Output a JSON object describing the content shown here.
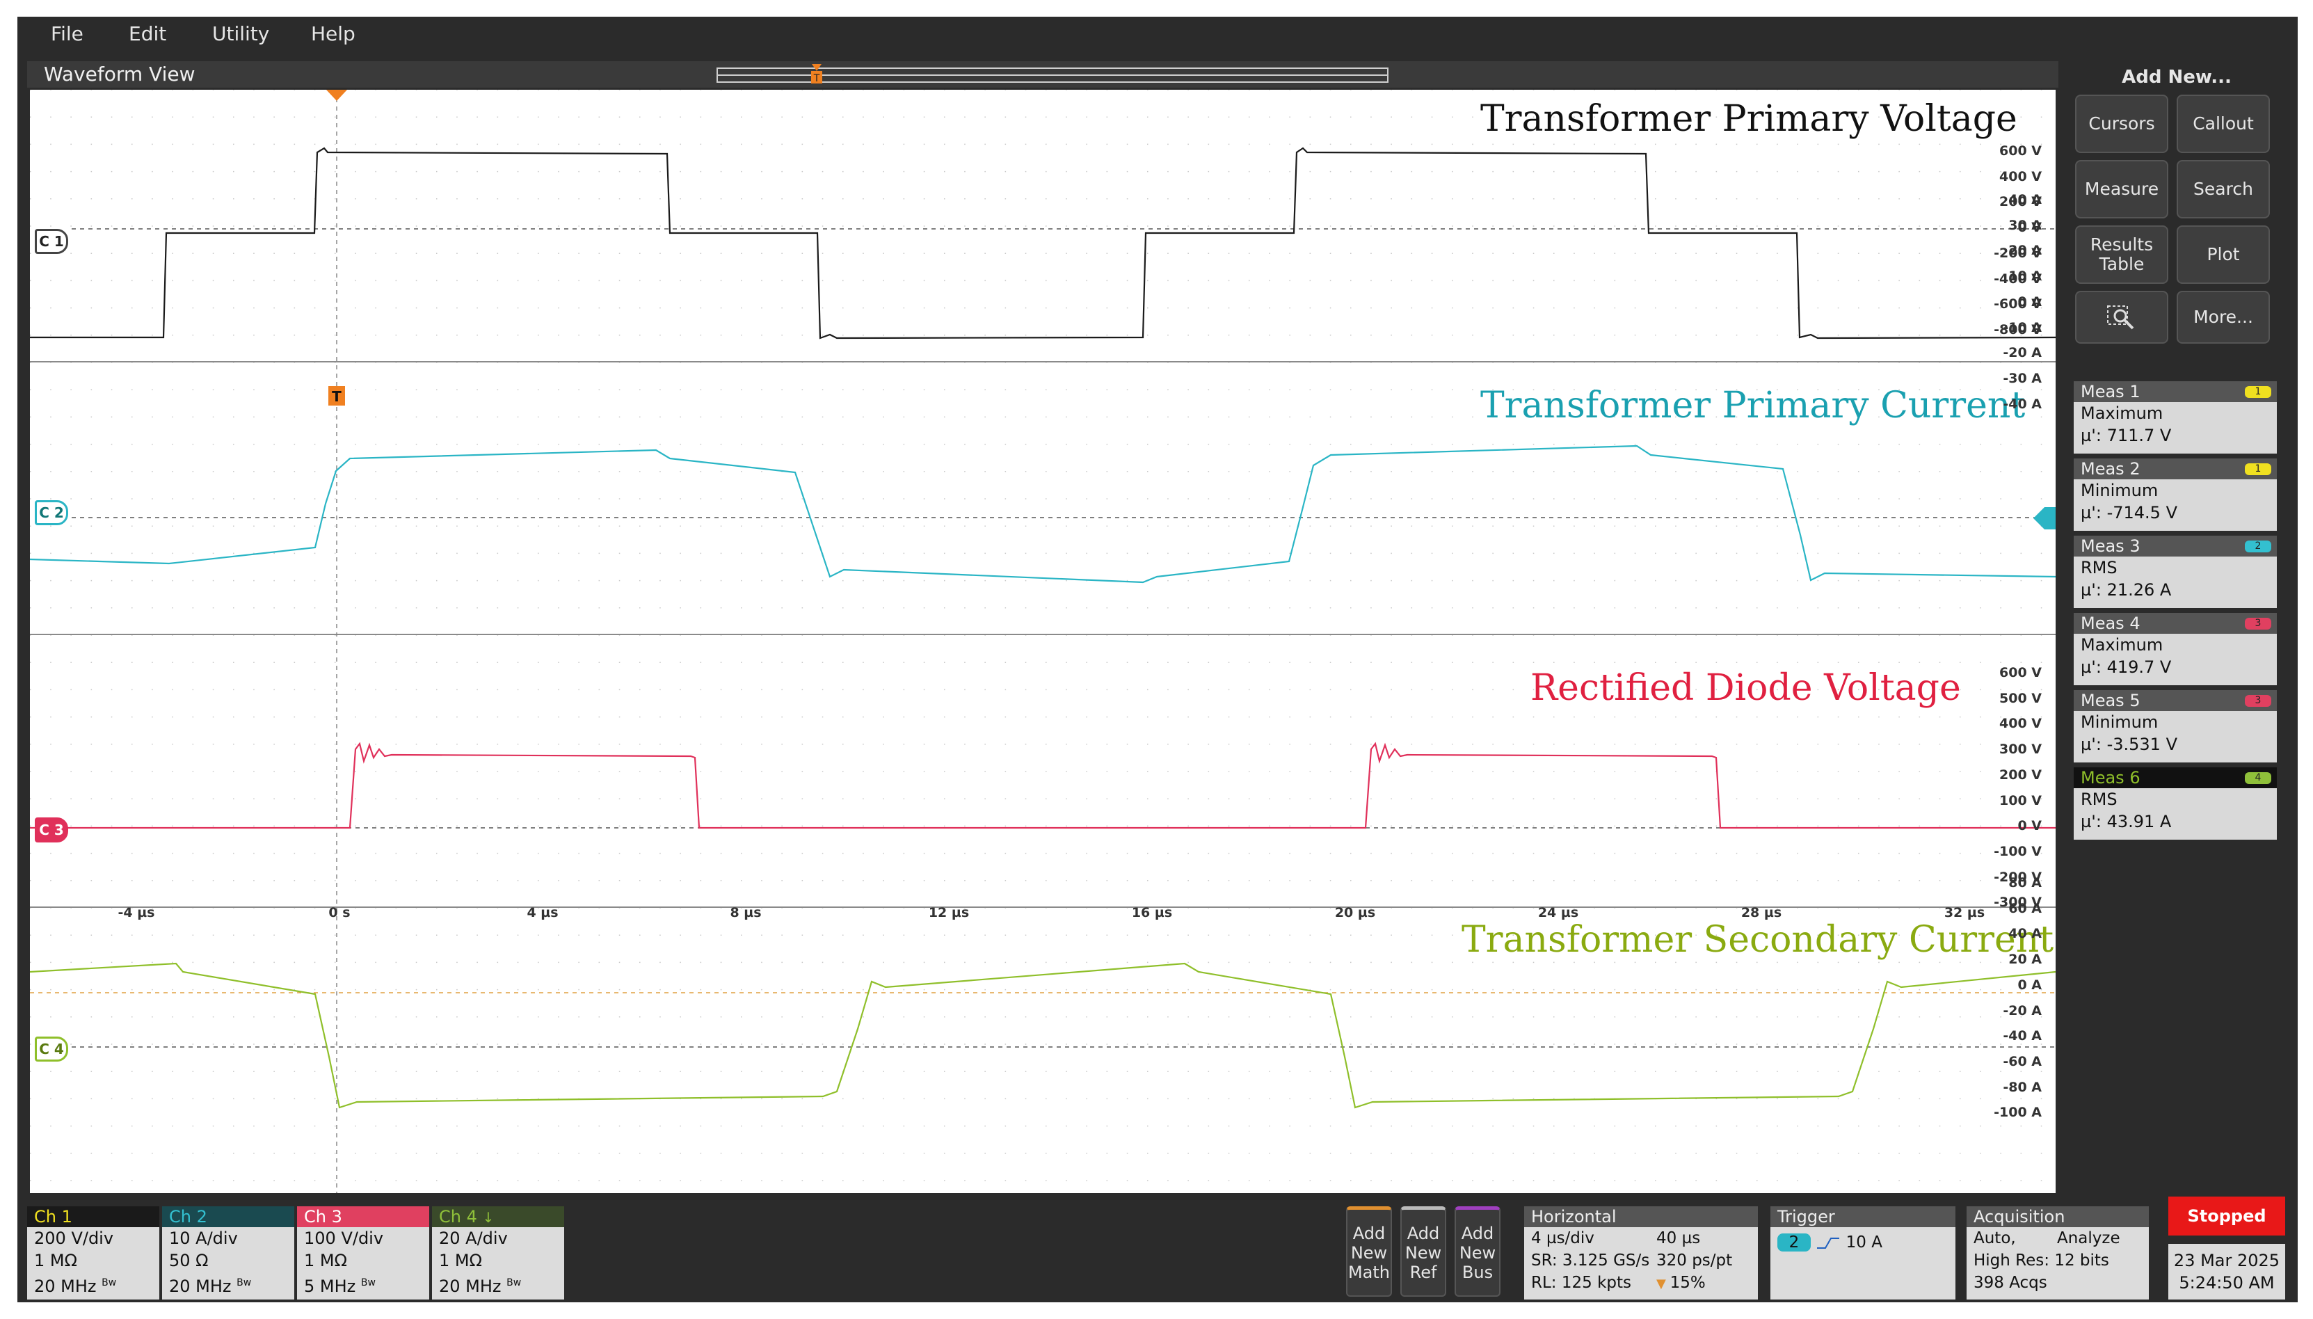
{
  "menu": [
    "File",
    "Edit",
    "Utility",
    "Help"
  ],
  "view_title": "Waveform View",
  "wave_titles": {
    "c1": "Transformer Primary Voltage",
    "c2": "Transformer Primary Current",
    "c3": "Rectified Diode Voltage",
    "c4": "Transformer Secondary Current"
  },
  "channel_labels": [
    "C 1",
    "C 2",
    "C 3",
    "C 4"
  ],
  "axis": {
    "c1": [
      "600 V",
      "400 V",
      "200 V",
      "0 V",
      "-200 V",
      "-400 V",
      "-600 V",
      "-800 V"
    ],
    "c2": [
      "40 A",
      "30 A",
      "20 A",
      "10 A",
      "0 A",
      "-10 A",
      "-20 A",
      "-30 A",
      "-40 A"
    ],
    "c3": [
      "600 V",
      "500 V",
      "400 V",
      "300 V",
      "200 V",
      "100 V",
      "0 V",
      "-100 V",
      "-200 V",
      "-300 V"
    ],
    "c4": [
      "80 A",
      "60 A",
      "40 A",
      "20 A",
      "0 A",
      "-20 A",
      "-40 A",
      "-60 A",
      "-80 A",
      "-100 A"
    ],
    "time": [
      "-4 µs",
      "0 s",
      "4 µs",
      "8 µs",
      "12 µs",
      "16 µs",
      "20 µs",
      "24 µs",
      "28 µs",
      "32 µs"
    ]
  },
  "trigger_marker": "T",
  "right_panel": {
    "add_new": "Add New...",
    "buttons": [
      "Cursors",
      "Callout",
      "Measure",
      "Search",
      "Results Table",
      "Plot",
      "More..."
    ],
    "measurements": [
      {
        "name": "Meas 1",
        "badge": "1",
        "type": "Maximum",
        "value": "µ': 711.7 V",
        "badge_color": "#f0e020"
      },
      {
        "name": "Meas 2",
        "badge": "1",
        "type": "Minimum",
        "value": "µ': -714.5 V",
        "badge_color": "#f0e020"
      },
      {
        "name": "Meas 3",
        "badge": "2",
        "type": "RMS",
        "value": "µ': 21.26 A",
        "badge_color": "#33c0d0"
      },
      {
        "name": "Meas 4",
        "badge": "3",
        "type": "Maximum",
        "value": "µ': 419.7 V",
        "badge_color": "#e04060"
      },
      {
        "name": "Meas 5",
        "badge": "3",
        "type": "Minimum",
        "value": "µ': -3.531 V",
        "badge_color": "#e04060"
      },
      {
        "name": "Meas 6",
        "badge": "4",
        "type": "RMS",
        "value": "µ': 43.91 A",
        "badge_color": "#8fc03a"
      }
    ]
  },
  "channels": [
    {
      "name": "Ch 1",
      "scale": "200 V/div",
      "impedance": "1 MΩ",
      "bandwidth": "20 MHz",
      "bw": "Bw",
      "color": "#1a1a1a",
      "head_text": "#f0e020"
    },
    {
      "name": "Ch 2",
      "scale": "10 A/div",
      "impedance": "50 Ω",
      "bandwidth": "20 MHz",
      "bw": "Bw",
      "color": "#1a4a50",
      "head_text": "#33c0d0"
    },
    {
      "name": "Ch 3",
      "scale": "100 V/div",
      "impedance": "1 MΩ",
      "bandwidth": "5 MHz",
      "bw": "Bw",
      "color": "#e04060",
      "head_text": "#ffffff"
    },
    {
      "name": "Ch 4",
      "scale": "20 A/div",
      "impedance": "1 MΩ",
      "bandwidth": "20 MHz",
      "bw": "Bw",
      "color": "#3a4a2a",
      "head_text": "#8fc03a"
    }
  ],
  "add_buttons": [
    {
      "label": "Add New Math",
      "color": "#e09030"
    },
    {
      "label": "Add New Ref",
      "color": "#bbbbbb"
    },
    {
      "label": "Add New Bus",
      "color": "#a040c0"
    }
  ],
  "horizontal": {
    "title": "Horizontal",
    "scale": "4 µs/div",
    "record_time": "40 µs",
    "sample_rate": "SR: 3.125 GS/s",
    "resolution": "320 ps/pt",
    "record_length": "RL: 125 kpts",
    "position": "15%"
  },
  "trigger": {
    "title": "Trigger",
    "source": "2",
    "level": "10 A"
  },
  "acquisition": {
    "title": "Acquisition",
    "mode": "Auto,",
    "action": "Analyze",
    "resolution": "High Res: 12 bits",
    "acqs": "398 Acqs"
  },
  "status": {
    "label": "Stopped",
    "date": "23 Mar 2025",
    "time": "5:24:50 AM"
  },
  "colors": {
    "c1": "#1a1a1a",
    "c2": "#2ab5c5",
    "c3": "#e0305a",
    "c4": "#8fbf2a",
    "trigger": "#f08020"
  }
}
